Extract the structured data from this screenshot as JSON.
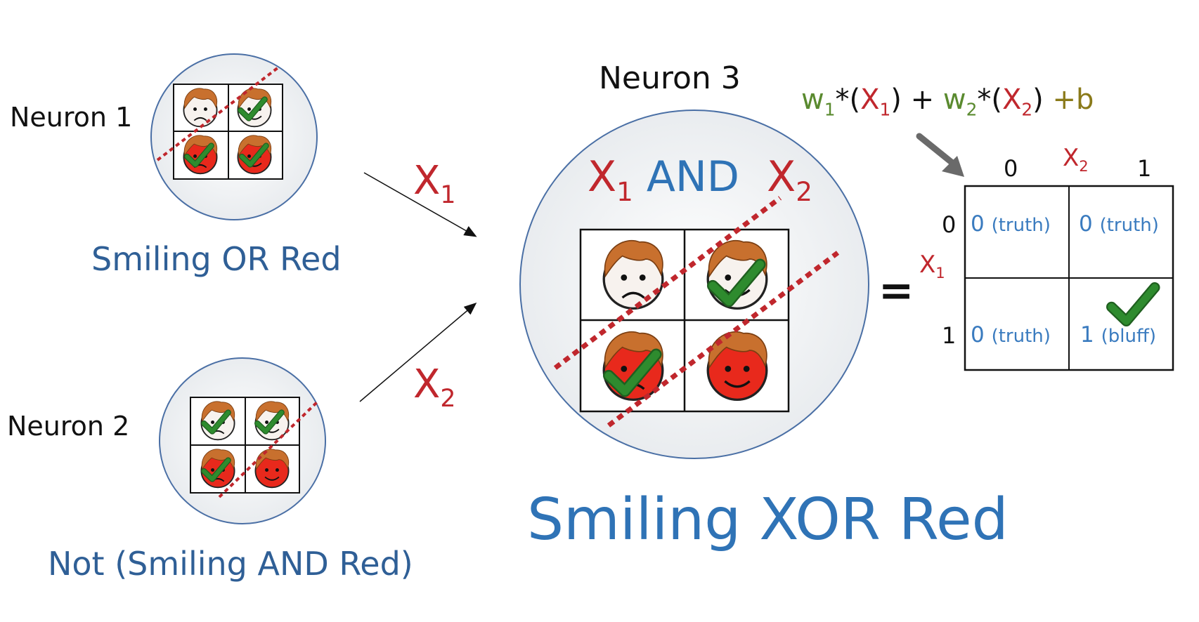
{
  "neuron1": {
    "title": "Neuron 1",
    "caption": "Smiling OR Red"
  },
  "neuron2": {
    "title": "Neuron 2",
    "caption": "Not (Smiling AND Red)"
  },
  "neuron3": {
    "title": "Neuron 3",
    "x1": "X",
    "and_word": "AND",
    "x2": "X",
    "equals": "="
  },
  "inputs": {
    "x1_label": "X",
    "x2_label": "X",
    "sub1": "1",
    "sub2": "2"
  },
  "formula": {
    "w1": "w",
    "star1": "*(",
    "x1": "X",
    "close1": ") +",
    "w2": "w",
    "star2": "*(",
    "x2": "X",
    "close2": ")",
    "plus_b": "+b",
    "sub1": "1",
    "sub2": "2"
  },
  "truth_table": {
    "col_var": "X",
    "col_var_sub": "2",
    "row_var": "X",
    "row_var_sub": "1",
    "col_headers": [
      "0",
      "1"
    ],
    "row_headers": [
      "0",
      "1"
    ],
    "cells": [
      {
        "value": "0",
        "note": "(truth)"
      },
      {
        "value": "0",
        "note": "(truth)"
      },
      {
        "value": "0",
        "note": "(truth)"
      },
      {
        "value": "1",
        "note": "(bluff)"
      }
    ]
  },
  "bottom_caption": "Smiling XOR Red",
  "colors": {
    "red_face": "#e8291c",
    "hair": "#c8702e",
    "check": "#2e8b2e",
    "circle_edge": "#4a6fa5",
    "dotted_line": "#c0272d",
    "caption_blue": "#2f73b6"
  },
  "icons": [
    "frowning-face-icon",
    "smiling-face-icon",
    "red-frowning-face-icon",
    "red-smiling-face-icon",
    "checkmark-icon"
  ]
}
